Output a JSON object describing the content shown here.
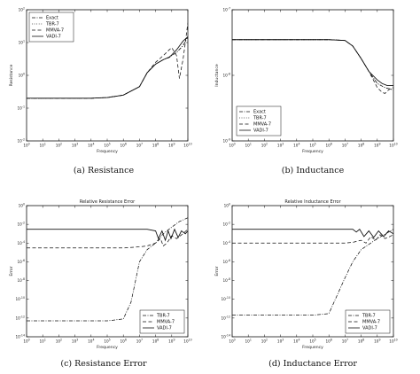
{
  "captions": [
    "(a) Resistance",
    "(b) Inductance",
    "(c) Resistance Error",
    "(d) Inductance Error"
  ],
  "chart_data": [
    {
      "type": "line",
      "title": "",
      "xlabel": "Frequency",
      "ylabel": "Resistance",
      "xscale": "log",
      "yscale": "log",
      "xlim": [
        1,
        10000000000
      ],
      "ylim": [
        0.01,
        100
      ],
      "xticks": [
        "10^0",
        "10^1",
        "10^2",
        "10^3",
        "10^4",
        "10^5",
        "10^6",
        "10^7",
        "10^8",
        "10^9",
        "10^10"
      ],
      "yticks": [
        "10^-2",
        "10^-1",
        "10^0",
        "10^1",
        "10^2"
      ],
      "legend_position": "top-left",
      "series": [
        {
          "name": "Exact",
          "style": "dashdot",
          "x": [
            1,
            10000,
            100000,
            1000000,
            10000000,
            30000000,
            100000000,
            300000000,
            700000000,
            1000000000,
            2000000000,
            5000000000,
            10000000000
          ],
          "y": [
            0.2,
            0.2,
            0.21,
            0.25,
            0.45,
            1.2,
            2.2,
            3.0,
            3.5,
            4.0,
            5.0,
            8.0,
            15.0
          ]
        },
        {
          "name": "TBR-7",
          "style": "dotted",
          "x": [
            1,
            10000,
            100000,
            1000000,
            10000000,
            30000000,
            100000000,
            300000000,
            700000000,
            1000000000,
            2000000000,
            5000000000,
            10000000000
          ],
          "y": [
            0.2,
            0.2,
            0.21,
            0.25,
            0.45,
            1.2,
            2.2,
            3.0,
            3.5,
            4.0,
            5.0,
            8.0,
            15.0
          ]
        },
        {
          "name": "MMVA-7",
          "style": "dashed",
          "x": [
            1,
            10000,
            100000,
            1000000,
            10000000,
            30000000,
            100000000,
            300000000,
            700000000,
            1000000000,
            2000000000,
            3000000000,
            5000000000,
            7000000000,
            10000000000
          ],
          "y": [
            0.2,
            0.2,
            0.21,
            0.25,
            0.45,
            1.2,
            2.5,
            4.0,
            6.0,
            7.0,
            4.0,
            0.8,
            3.0,
            10.0,
            40.0
          ]
        },
        {
          "name": "VADI-7",
          "style": "solid",
          "x": [
            1,
            10000,
            100000,
            1000000,
            10000000,
            30000000,
            100000000,
            300000000,
            700000000,
            1000000000,
            2000000000,
            5000000000,
            10000000000
          ],
          "y": [
            0.2,
            0.2,
            0.21,
            0.25,
            0.45,
            1.2,
            2.2,
            3.0,
            3.6,
            4.2,
            6.0,
            11.0,
            15.0
          ]
        }
      ]
    },
    {
      "type": "line",
      "title": "",
      "xlabel": "Frequency",
      "ylabel": "Inductance",
      "xscale": "log",
      "yscale": "log",
      "xlim": [
        1,
        10000000000
      ],
      "ylim": [
        1e-09,
        1e-07
      ],
      "xticks": [
        "10^0",
        "10^1",
        "10^2",
        "10^3",
        "10^4",
        "10^5",
        "10^6",
        "10^7",
        "10^8",
        "10^9",
        "10^10"
      ],
      "yticks": [
        "10^-9",
        "10^-8",
        "10^-7"
      ],
      "legend_position": "bottom-left",
      "series": [
        {
          "name": "Exact",
          "style": "dashdot",
          "x": [
            1,
            1000000,
            10000000,
            30000000,
            100000000,
            300000000,
            1000000000,
            3000000000,
            10000000000
          ],
          "y": [
            3.5e-08,
            3.5e-08,
            3.4e-08,
            2.8e-08,
            1.8e-08,
            1.15e-08,
            7.5e-09,
            6.5e-09,
            6e-09
          ]
        },
        {
          "name": "TBR-7",
          "style": "dotted",
          "x": [
            1,
            1000000,
            10000000,
            30000000,
            100000000,
            300000000,
            1000000000,
            3000000000,
            10000000000
          ],
          "y": [
            3.5e-08,
            3.5e-08,
            3.4e-08,
            2.8e-08,
            1.8e-08,
            1.15e-08,
            7.5e-09,
            6.5e-09,
            6e-09
          ]
        },
        {
          "name": "MMVA-7",
          "style": "dashed",
          "x": [
            1,
            1000000,
            10000000,
            30000000,
            100000000,
            300000000,
            1000000000,
            2000000000,
            3000000000,
            5000000000,
            10000000000
          ],
          "y": [
            3.5e-08,
            3.5e-08,
            3.4e-08,
            2.8e-08,
            1.8e-08,
            1.15e-08,
            6.5e-09,
            5.5e-09,
            5.3e-09,
            6e-09,
            6.5e-09
          ]
        },
        {
          "name": "VADI-7",
          "style": "solid",
          "x": [
            1,
            1000000,
            10000000,
            30000000,
            100000000,
            300000000,
            1000000000,
            2000000000,
            4000000000,
            10000000000
          ],
          "y": [
            3.5e-08,
            3.5e-08,
            3.4e-08,
            2.8e-08,
            1.8e-08,
            1.15e-08,
            8.5e-09,
            7.5e-09,
            7e-09,
            7e-09
          ]
        }
      ]
    },
    {
      "type": "line",
      "title": "Relative Resistance Error",
      "xlabel": "Frequency",
      "ylabel": "Error",
      "xscale": "log",
      "yscale": "log",
      "xlim": [
        1,
        10000000000
      ],
      "ylim": [
        1e-14,
        1
      ],
      "xticks": [
        "10^0",
        "10^1",
        "10^2",
        "10^3",
        "10^4",
        "10^5",
        "10^6",
        "10^7",
        "10^8",
        "10^9",
        "10^10"
      ],
      "yticks": [
        "10^-14",
        "10^-12",
        "10^-10",
        "10^-8",
        "10^-6",
        "10^-4",
        "10^-2",
        "10^0"
      ],
      "legend_position": "bottom-right",
      "series": [
        {
          "name": "TBR-7",
          "style": "dashdot",
          "x": [
            1,
            10000,
            100000,
            1000000,
            3000000,
            10000000,
            30000000,
            100000000,
            300000000,
            1000000000,
            3000000000,
            10000000000
          ],
          "y": [
            5e-13,
            5e-13,
            5e-13,
            8e-13,
            5e-11,
            1e-06,
            2e-05,
            0.0001,
            0.001,
            0.005,
            0.02,
            0.05
          ]
        },
        {
          "name": "MMVA-7",
          "style": "dashed",
          "x": [
            1,
            1000000,
            10000000,
            30000000,
            100000000,
            200000000,
            300000000,
            500000000,
            1000000000,
            2000000000,
            5000000000,
            10000000000
          ],
          "y": [
            3e-05,
            3e-05,
            4e-05,
            5e-05,
            0.0001,
            0.0003,
            5e-05,
            0.0001,
            0.0006,
            0.0003,
            0.001,
            0.003
          ]
        },
        {
          "name": "VADI-7",
          "style": "solid",
          "x": [
            1,
            10000000,
            30000000,
            100000000,
            150000000,
            250000000,
            400000000,
            600000000,
            900000000,
            1500000000,
            2500000000,
            4000000000,
            7000000000,
            10000000000
          ],
          "y": [
            0.003,
            0.003,
            0.003,
            0.002,
            0.0003,
            0.002,
            0.0002,
            0.002,
            0.0003,
            0.003,
            0.0004,
            0.002,
            0.001,
            0.002
          ]
        }
      ]
    },
    {
      "type": "line",
      "title": "Relative Inductance Error",
      "xlabel": "Frequency",
      "ylabel": "Error",
      "xscale": "log",
      "yscale": "log",
      "xlim": [
        1,
        10000000000
      ],
      "ylim": [
        1e-14,
        1
      ],
      "xticks": [
        "10^0",
        "10^1",
        "10^2",
        "10^3",
        "10^4",
        "10^5",
        "10^6",
        "10^7",
        "10^8",
        "10^9",
        "10^10"
      ],
      "yticks": [
        "10^-14",
        "10^-12",
        "10^-10",
        "10^-8",
        "10^-6",
        "10^-4",
        "10^-2",
        "10^0"
      ],
      "legend_position": "bottom-right",
      "series": [
        {
          "name": "TBR-7",
          "style": "dashdot",
          "x": [
            1,
            10000,
            100000,
            1000000,
            3000000,
            10000000,
            30000000,
            100000000,
            1000000000,
            10000000000
          ],
          "y": [
            2e-12,
            2e-12,
            2e-12,
            3e-12,
            2e-10,
            2e-08,
            1e-06,
            2e-05,
            0.0003,
            0.003
          ]
        },
        {
          "name": "MMVA-7",
          "style": "dashed",
          "x": [
            1,
            10000000,
            30000000,
            100000000,
            200000000,
            400000000,
            800000000,
            1500000000,
            3000000000,
            6000000000,
            10000000000
          ],
          "y": [
            0.0001,
            0.0001,
            0.00012,
            0.0002,
            0.0001,
            0.0005,
            0.0002,
            0.0008,
            0.0003,
            0.0005,
            0.0008
          ]
        },
        {
          "name": "VADI-7",
          "style": "solid",
          "x": [
            1,
            10000000,
            30000000,
            50000000,
            80000000,
            150000000,
            300000000,
            600000000,
            1200000000,
            2500000000,
            5000000000,
            10000000000
          ],
          "y": [
            0.003,
            0.003,
            0.003,
            0.0015,
            0.003,
            0.0005,
            0.002,
            0.0004,
            0.002,
            0.0005,
            0.002,
            0.001
          ]
        }
      ]
    }
  ]
}
